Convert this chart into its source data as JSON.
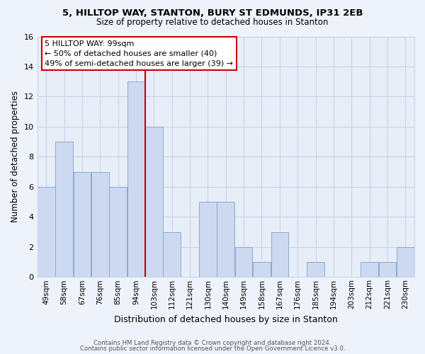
{
  "title1": "5, HILLTOP WAY, STANTON, BURY ST EDMUNDS, IP31 2EB",
  "title2": "Size of property relative to detached houses in Stanton",
  "xlabel": "Distribution of detached houses by size in Stanton",
  "ylabel": "Number of detached properties",
  "bar_labels": [
    "49sqm",
    "58sqm",
    "67sqm",
    "76sqm",
    "85sqm",
    "94sqm",
    "103sqm",
    "112sqm",
    "121sqm",
    "130sqm",
    "140sqm",
    "149sqm",
    "158sqm",
    "167sqm",
    "176sqm",
    "185sqm",
    "194sqm",
    "203sqm",
    "212sqm",
    "221sqm",
    "230sqm"
  ],
  "bar_values": [
    6,
    9,
    7,
    7,
    6,
    13,
    10,
    3,
    0,
    5,
    5,
    2,
    1,
    3,
    0,
    1,
    0,
    0,
    1,
    1,
    2
  ],
  "bar_color": "#ccd9f0",
  "bar_edge_color": "#8aaad4",
  "vline_x": 6,
  "vline_color": "#cc0000",
  "annotation_text": "5 HILLTOP WAY: 99sqm\n← 50% of detached houses are smaller (40)\n49% of semi-detached houses are larger (39) →",
  "annotation_box_edge": "#cc0000",
  "ylim": [
    0,
    16
  ],
  "yticks": [
    0,
    2,
    4,
    6,
    8,
    10,
    12,
    14,
    16
  ],
  "footer1": "Contains HM Land Registry data © Crown copyright and database right 2024.",
  "footer2": "Contains public sector information licensed under the Open Government Licence v3.0.",
  "bg_color": "#eef2fa",
  "plot_bg_color": "#e8eef8",
  "grid_color": "#c8d4e8"
}
